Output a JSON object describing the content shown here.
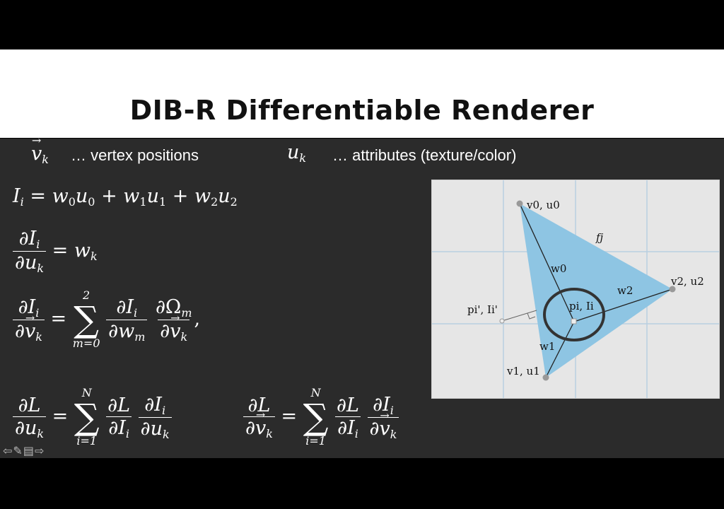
{
  "slide": {
    "title": "DIB-R Differentiable Renderer",
    "legend_vertex": "… vertex positions",
    "legend_attr": "… attributes (texture/color)"
  },
  "equations": {
    "sum_upper_2": "2",
    "sum_lower_m": "m=0",
    "sum_upper_N": "N",
    "sum_lower_i": "i=1"
  },
  "diagram": {
    "v0_label": "v0, u0",
    "v1_label": "v1, u1",
    "v2_label": "v2, u2",
    "face_label": "fj",
    "w0_label": "w0",
    "w1_label": "w1",
    "w2_label": "w2",
    "pi_label": "pi, Ii",
    "pi_prime_label": "pi', Ii'"
  },
  "colors": {
    "triangle_fill": "#8ec5e3",
    "grid_line": "#b9cfe0",
    "diagram_bg": "#e6e6e6"
  },
  "nav_icons": [
    "arrow-left-icon",
    "pen-icon",
    "menu-icon",
    "arrow-right-icon"
  ]
}
